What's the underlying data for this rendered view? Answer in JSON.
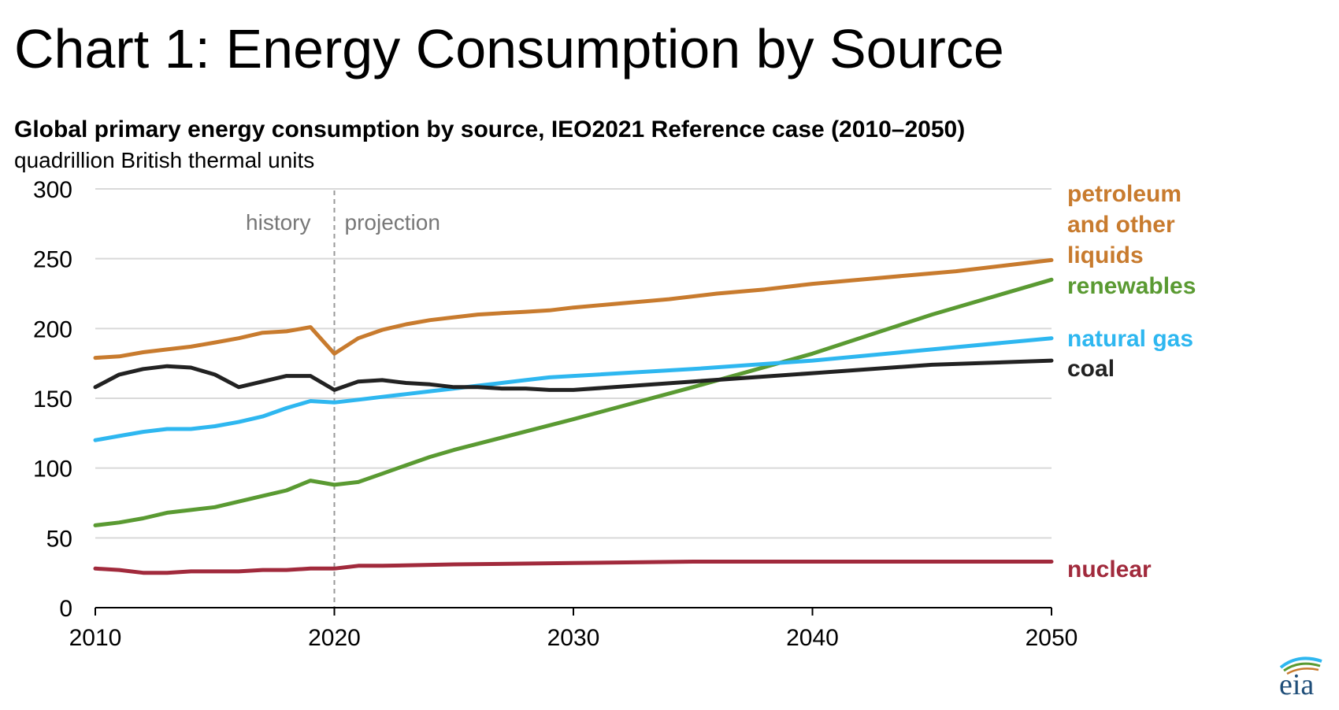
{
  "page_title": "Chart 1: Energy Consumption by Source",
  "colors": {
    "petroleum": "#C87B2E",
    "renewables": "#5A9A32",
    "natural_gas": "#2EB7F0",
    "coal": "#222222",
    "nuclear": "#A12A3C",
    "grid": "#D9D9D9",
    "axis": "#000000",
    "divider": "#999999",
    "annotation": "#777777"
  },
  "logo": {
    "text": "eia"
  },
  "chart_data": {
    "type": "line",
    "title": "Global primary energy consumption by source, IEO2021 Reference case (2010–2050)",
    "subtitle": "quadrillion British thermal units",
    "xlabel": "",
    "ylabel": "quadrillion British thermal units",
    "xlim": [
      2010,
      2050
    ],
    "ylim": [
      0,
      300
    ],
    "yticks": [
      0,
      50,
      100,
      150,
      200,
      250,
      300
    ],
    "xticks": [
      2010,
      2020,
      2030,
      2040,
      2050
    ],
    "grid": true,
    "divider": {
      "x": 2020,
      "left_label": "history",
      "right_label": "projection"
    },
    "series": [
      {
        "name": "petroleum and other liquids",
        "label_lines": [
          "petroleum",
          "and other",
          "liquids"
        ],
        "color_key": "petroleum",
        "x": [
          2010,
          2011,
          2012,
          2013,
          2014,
          2015,
          2016,
          2017,
          2018,
          2019,
          2020,
          2021,
          2022,
          2023,
          2024,
          2025,
          2026,
          2027,
          2028,
          2029,
          2030,
          2032,
          2034,
          2036,
          2038,
          2040,
          2042,
          2044,
          2046,
          2048,
          2050
        ],
        "values": [
          179,
          180,
          183,
          185,
          187,
          190,
          193,
          197,
          198,
          201,
          182,
          193,
          199,
          203,
          206,
          208,
          210,
          211,
          212,
          213,
          215,
          218,
          221,
          225,
          228,
          232,
          235,
          238,
          241,
          245,
          249
        ]
      },
      {
        "name": "renewables",
        "label_lines": [
          "renewables"
        ],
        "color_key": "renewables",
        "x": [
          2010,
          2011,
          2012,
          2013,
          2014,
          2015,
          2016,
          2017,
          2018,
          2019,
          2020,
          2021,
          2022,
          2023,
          2024,
          2025,
          2030,
          2035,
          2040,
          2045,
          2050
        ],
        "values": [
          59,
          61,
          64,
          68,
          70,
          72,
          76,
          80,
          84,
          91,
          88,
          90,
          96,
          102,
          108,
          113,
          135,
          158,
          182,
          210,
          235
        ]
      },
      {
        "name": "natural gas",
        "label_lines": [
          "natural gas"
        ],
        "color_key": "natural_gas",
        "x": [
          2010,
          2011,
          2012,
          2013,
          2014,
          2015,
          2016,
          2017,
          2018,
          2019,
          2020,
          2021,
          2022,
          2023,
          2024,
          2025,
          2026,
          2027,
          2028,
          2029,
          2030,
          2035,
          2040,
          2045,
          2050
        ],
        "values": [
          120,
          123,
          126,
          128,
          128,
          130,
          133,
          137,
          143,
          148,
          147,
          149,
          151,
          153,
          155,
          157,
          159,
          161,
          163,
          165,
          166,
          171,
          177,
          185,
          193
        ]
      },
      {
        "name": "coal",
        "label_lines": [
          "coal"
        ],
        "color_key": "coal",
        "x": [
          2010,
          2011,
          2012,
          2013,
          2014,
          2015,
          2016,
          2017,
          2018,
          2019,
          2020,
          2021,
          2022,
          2023,
          2024,
          2025,
          2026,
          2027,
          2028,
          2029,
          2030,
          2035,
          2040,
          2045,
          2050
        ],
        "values": [
          158,
          167,
          171,
          173,
          172,
          167,
          158,
          162,
          166,
          166,
          156,
          162,
          163,
          161,
          160,
          158,
          158,
          157,
          157,
          156,
          156,
          162,
          168,
          174,
          177
        ]
      },
      {
        "name": "nuclear",
        "label_lines": [
          "nuclear"
        ],
        "color_key": "nuclear",
        "x": [
          2010,
          2011,
          2012,
          2013,
          2014,
          2015,
          2016,
          2017,
          2018,
          2019,
          2020,
          2021,
          2022,
          2025,
          2030,
          2035,
          2040,
          2045,
          2050
        ],
        "values": [
          28,
          27,
          25,
          25,
          26,
          26,
          26,
          27,
          27,
          28,
          28,
          30,
          30,
          31,
          32,
          33,
          33,
          33,
          33
        ]
      }
    ]
  }
}
